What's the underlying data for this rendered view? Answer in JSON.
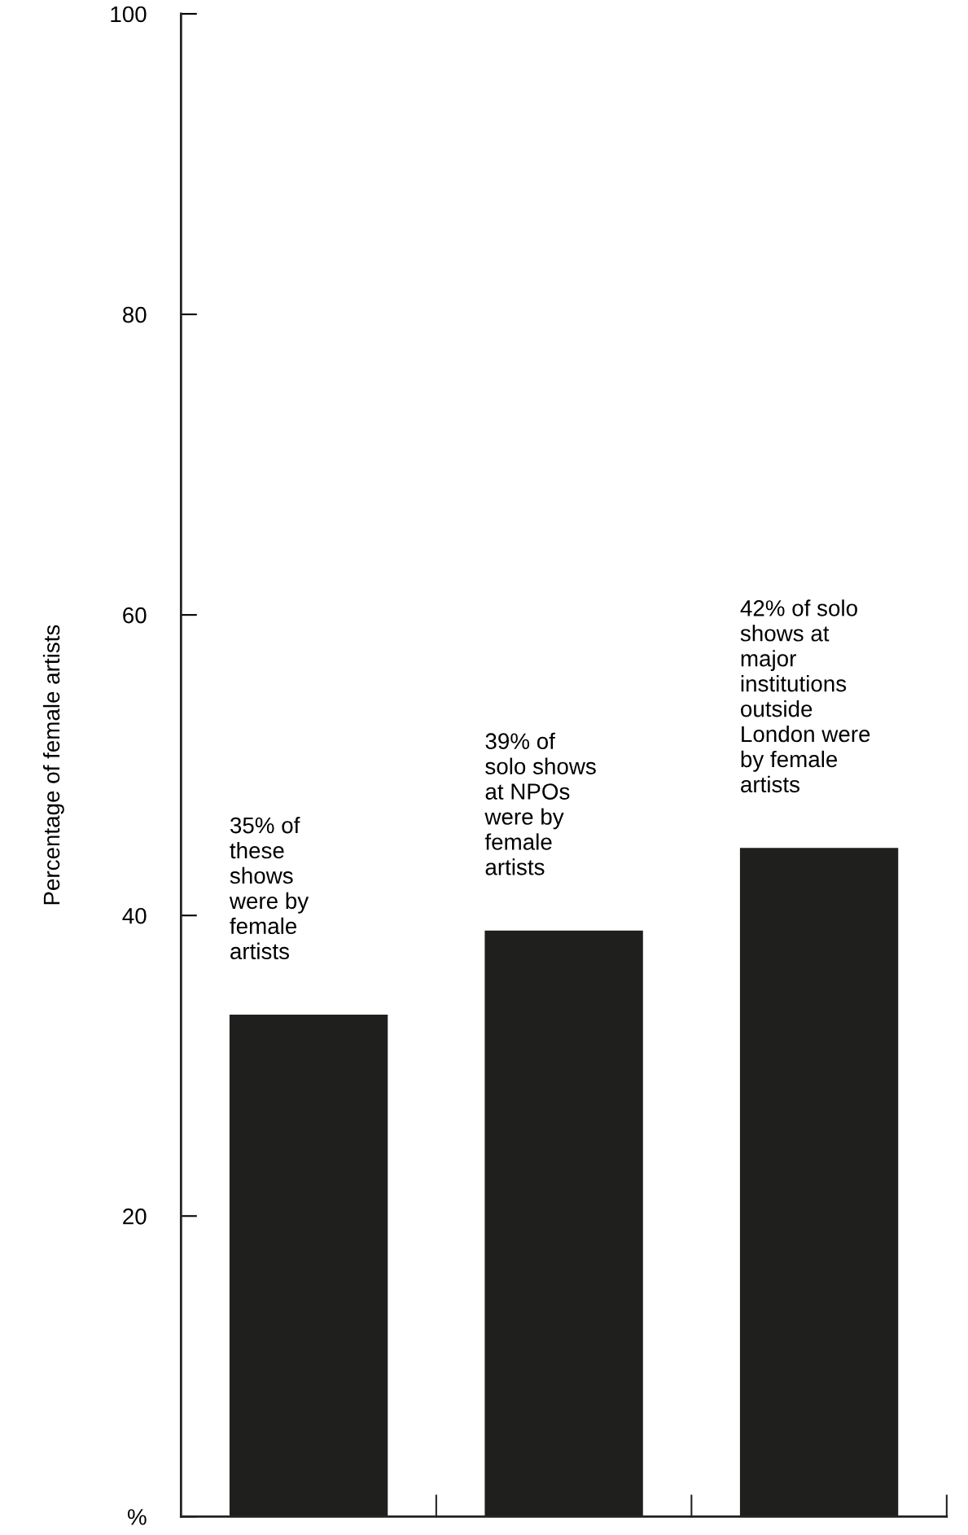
{
  "chart_data": {
    "type": "bar",
    "ylabel": "Percentage of female artists",
    "categories": [
      null,
      null,
      null
    ],
    "values": [
      33.4,
      39,
      44.5
    ],
    "color": "#1f1f1e",
    "ylim": [
      0,
      100
    ],
    "yticks": [
      {
        "value": 0,
        "label": "%"
      },
      20,
      40,
      60,
      80,
      100
    ],
    "tick_labels": "y",
    "grid": false,
    "annotations": [
      "35% of\nthese\nshows\nwere by\nfemale\nartists",
      "39% of\nsolo shows\nat NPOs\nwere by\nfemale\nartists",
      "42% of solo\nshows at\nmajor\ninstitutions\noutside\nLondon were\nby female\nartists"
    ]
  }
}
